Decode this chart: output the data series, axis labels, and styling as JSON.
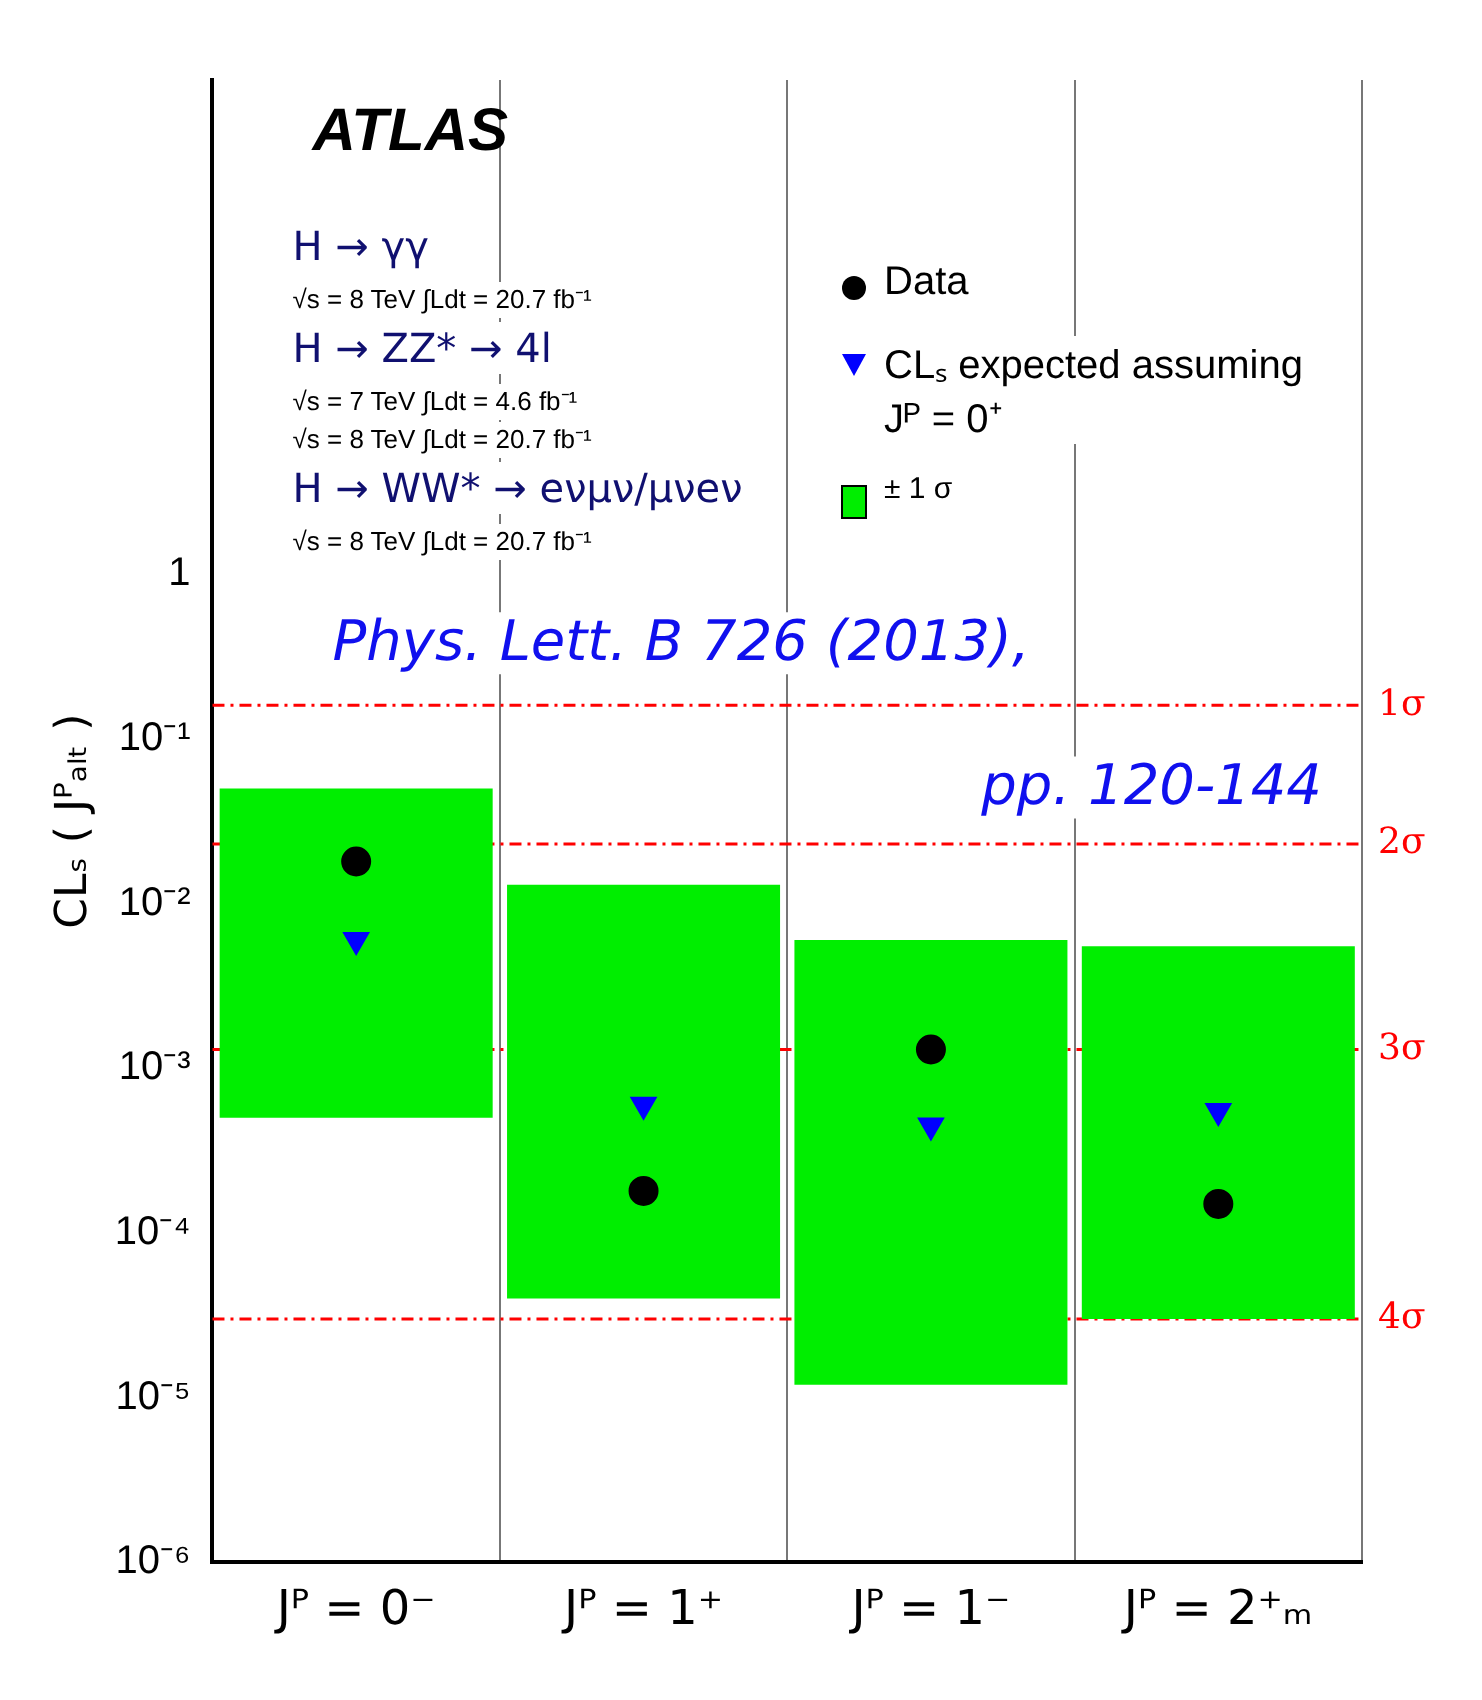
{
  "chart_data": {
    "type": "bar",
    "ylabel": "CLₛ ( Jᴾₐₗₜ )",
    "categories": [
      "Jᴾ = 0⁻",
      "Jᴾ = 1⁺",
      "Jᴾ = 1⁻",
      "Jᴾ = 2⁺ₘ"
    ],
    "series": [
      {
        "name": "± 1 σ",
        "color": "#00ee00",
        "base": [
          0.0005,
          4e-05,
          1.2e-05,
          3e-05
        ],
        "values": [
          0.0495,
          0.01296,
          0.005988,
          0.00547
        ]
      },
      {
        "type": "scatter",
        "name": "Data",
        "color": "#000000",
        "marker": "circle",
        "values": [
          0.018,
          0.00018,
          0.0013,
          0.00015
        ]
      },
      {
        "type": "scatter",
        "name": "CLₛ expected assuming Jᴾ = 0⁺",
        "color": "#0000ff",
        "marker": "triangle",
        "values": [
          0.006,
          0.0006,
          0.00045,
          0.00055
        ]
      }
    ],
    "log": "y",
    "ylim": [
      1e-06,
      1000
    ],
    "yticks": [
      {
        "value": 1e-06,
        "label": "10⁻⁶"
      },
      {
        "value": 1e-05,
        "label": "10⁻⁵"
      },
      {
        "value": 0.0001,
        "label": "10⁻⁴"
      },
      {
        "value": 0.001,
        "label": "10⁻³"
      },
      {
        "value": 0.01,
        "label": "10⁻²"
      },
      {
        "value": 0.1,
        "label": "10⁻¹"
      },
      1
    ],
    "grid": "x",
    "legend": "top right",
    "ref_lines": [
      {
        "axis": "y",
        "value": 0.16,
        "label": "1σ",
        "color": "#ff0000",
        "line_style": "dashed"
      },
      {
        "axis": "y",
        "value": 0.023,
        "label": "2σ",
        "color": "#ff0000",
        "line_style": "dashed"
      },
      {
        "axis": "y",
        "value": 0.0013,
        "label": "3σ",
        "color": "#ff0000",
        "line_style": "dashed"
      },
      {
        "axis": "y",
        "value": 3e-05,
        "label": "4σ",
        "color": "#ff0000",
        "line_style": "dashed"
      }
    ],
    "annotations": [
      "ATLAS",
      "H → γγ",
      "√s = 8 TeV ∫Ldt = 20.7 fb⁻¹",
      "H → ZZ* → 4l",
      "√s = 7 TeV ∫Ldt = 4.6 fb⁻¹",
      "√s = 8 TeV ∫Ldt = 20.7 fb⁻¹",
      "H → WW* → eνμν/μνeν",
      "√s = 8 TeV ∫Ldt = 20.7 fb⁻¹",
      "Phys. Lett. B 726 (2013), pp. 120-144"
    ]
  }
}
